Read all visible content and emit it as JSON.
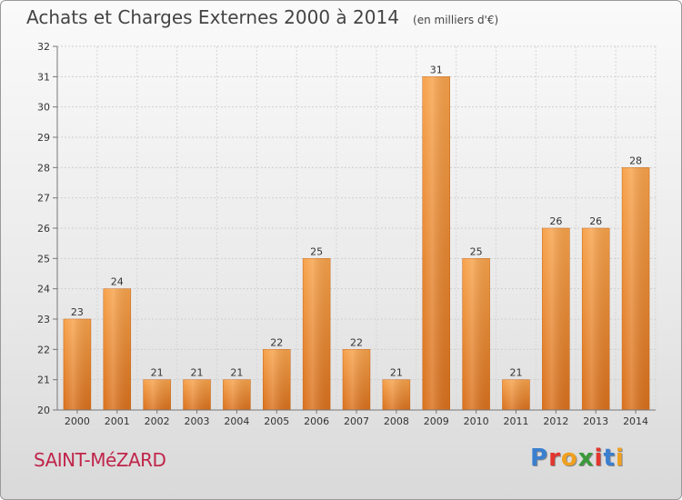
{
  "header": {
    "title": "Achats et Charges Externes 2000 à 2014",
    "subtitle": "(en milliers d'€)"
  },
  "location": "SAINT-MéZARD",
  "brand": {
    "name": "Proxiti",
    "colors": [
      "#3a7fd0",
      "#e2362f",
      "#f0a020",
      "#3a9a3a",
      "#e2362f",
      "#3a7fd0",
      "#f0a020"
    ]
  },
  "chart_data": {
    "type": "bar",
    "categories": [
      "2000",
      "2001",
      "2002",
      "2003",
      "2004",
      "2005",
      "2006",
      "2007",
      "2008",
      "2009",
      "2010",
      "2011",
      "2012",
      "2013",
      "2014"
    ],
    "values": [
      23,
      24,
      21,
      21,
      21,
      22,
      25,
      22,
      21,
      31,
      25,
      21,
      26,
      26,
      28
    ],
    "title": "Achats et Charges Externes 2000 à 2014",
    "ylim": [
      20,
      32
    ],
    "yticks": [
      20,
      21,
      22,
      23,
      24,
      25,
      26,
      27,
      28,
      29,
      30,
      31,
      32
    ],
    "grid": true,
    "bar_color": "#f0922c"
  }
}
